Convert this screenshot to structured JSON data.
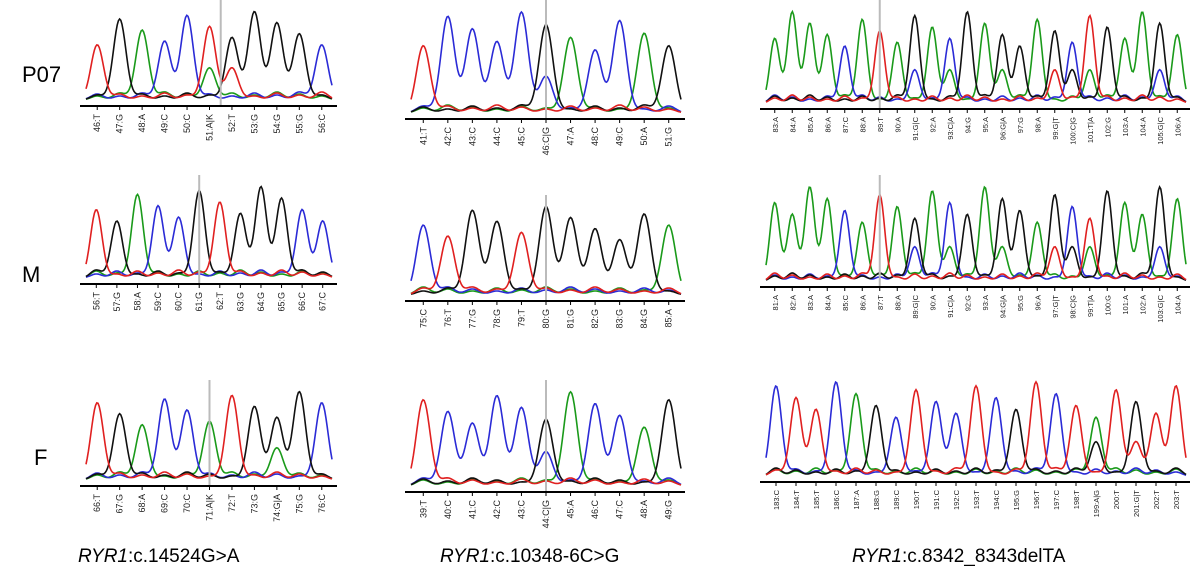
{
  "rows": [
    {
      "label": "P07"
    },
    {
      "label": "M"
    },
    {
      "label": "F"
    }
  ],
  "captions": [
    {
      "gene": "RYR1",
      "variant": ":c.14524G>A"
    },
    {
      "gene": "RYR1",
      "variant": ":c.10348-6C>G"
    },
    {
      "gene": "RYR1",
      "variant": ":c.8342_8343delTA"
    }
  ],
  "colors": {
    "A": "#1a9a1a",
    "C": "#2b2bd6",
    "G": "#111111",
    "T": "#e02020",
    "marker": "#bbbbbb"
  },
  "panels": [
    {
      "name": "p07-c14524",
      "ticks": [
        "46:T",
        "47:G",
        "48:A",
        "49:C",
        "50:C",
        "51:A|K",
        "52:T",
        "53:G",
        "54:G",
        "55:G",
        "56:C"
      ],
      "peaks": "TGACCTGGGGC",
      "marker": 5.5
    },
    {
      "name": "p07-c10348",
      "ticks": [
        "41:T",
        "42:C",
        "43:C",
        "44:C",
        "45:C",
        "46:C|G",
        "47:A",
        "48:C",
        "49:C",
        "50:A",
        "51:G"
      ],
      "peaks": "TCCCCGACCAG",
      "marker": 5
    },
    {
      "name": "p07-c8342",
      "ticks": [
        "83:A",
        "84:A",
        "85:A",
        "86:A",
        "87:C",
        "88:A",
        "89:T",
        "90:A",
        "91:G|C",
        "92:A",
        "93:C|A",
        "94:G",
        "95:A",
        "96:G|A",
        "97:G",
        "98:A",
        "99:G|T",
        "100:C|G",
        "101:T|A",
        "102:G",
        "103:A",
        "104:A",
        "105:G|C",
        "106:A"
      ],
      "peaks": "AAAACATAGACGAGGAGCTGAAGA",
      "marker": 6
    },
    {
      "name": "m-c14524",
      "ticks": [
        "56:T",
        "57:G",
        "58:A",
        "59:C",
        "60:C",
        "61:G",
        "62:T",
        "63:G",
        "64:G",
        "65:G",
        "66:C",
        "67:C"
      ],
      "peaks": "TGACCGTGGGCC",
      "marker": 5
    },
    {
      "name": "m-c10348",
      "ticks": [
        "75:C",
        "76:T",
        "77:G",
        "78:G",
        "79:T",
        "80:G",
        "81:G",
        "82:G",
        "83:G",
        "84:G",
        "85:A"
      ],
      "peaks": "CTGGTGGGGGA",
      "marker": 5
    },
    {
      "name": "m-c8342",
      "ticks": [
        "81:A",
        "82:A",
        "83:A",
        "84:A",
        "85:C",
        "86:A",
        "87:T",
        "88:A",
        "89:G|C",
        "90:A",
        "91:C|A",
        "92:G",
        "93:A",
        "94:G|A",
        "95:G",
        "96:A",
        "97:G|T",
        "98:C|G",
        "99:T|A",
        "100:G",
        "101:A",
        "102:A",
        "103:G|C",
        "104:A"
      ],
      "peaks": "AAAACATAGACGAGGAGCTGAAGA",
      "marker": 6
    },
    {
      "name": "f-c14524",
      "ticks": [
        "66:T",
        "67:G",
        "68:A",
        "69:C",
        "70:C",
        "71:A|K",
        "72:T",
        "73:G",
        "74:G|A",
        "75:G",
        "76:C"
      ],
      "peaks": "TGACCATGGGC",
      "marker": 5
    },
    {
      "name": "f-c10348",
      "ticks": [
        "39:T",
        "40:C",
        "41:C",
        "42:C",
        "43:C",
        "44:C|G",
        "45:A",
        "46:C",
        "47:C",
        "48:A",
        "49:G"
      ],
      "peaks": "TCCCCGACCAG",
      "marker": 5
    },
    {
      "name": "f-c8342",
      "ticks": [
        "183:C",
        "184:T",
        "185:T",
        "186:C",
        "187:A",
        "188:G",
        "189:C",
        "190:T",
        "191:C",
        "192:C",
        "193:T",
        "194:C",
        "195:G",
        "196:T",
        "197:C",
        "198:T",
        "199:A|G",
        "200:T",
        "201:G|T",
        "202:T",
        "203:T"
      ],
      "peaks": "CTTCAGCTCCTCGTCTATGTT",
      "marker": -1
    }
  ]
}
